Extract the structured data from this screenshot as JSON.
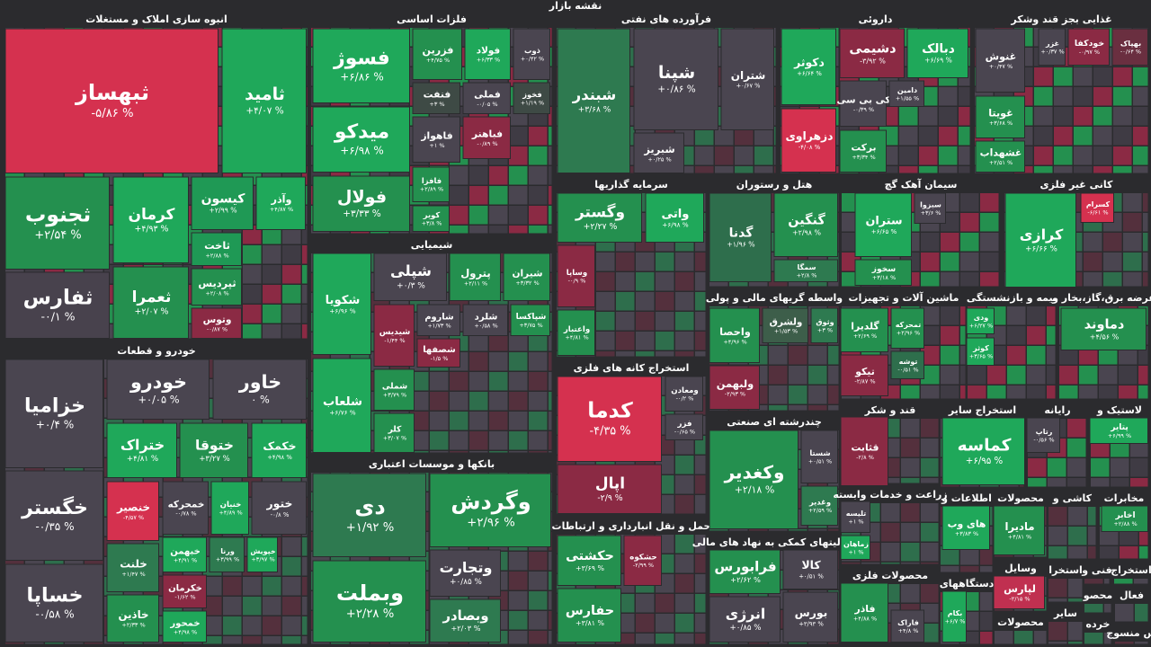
{
  "title": "نقشه بازار",
  "sectors": [
    {
      "name": "انبوه سازی املاک و مستغلات",
      "tiles": [
        {
          "symbol": "ثبهساز",
          "change": "-۵/۸۶ %",
          "color": "#d5314f"
        },
        {
          "symbol": "ثامید",
          "change": "+۴/۰۷ %",
          "color": "#1fa85a"
        },
        {
          "symbol": "ثجنوب",
          "change": "+۲/۵۴ %",
          "color": "#24904f"
        },
        {
          "symbol": "کرمان",
          "change": "+۴/۹۳ %",
          "color": "#1fa85a"
        },
        {
          "symbol": "کیسون",
          "change": "+۲/۹۹ %",
          "color": "#1f9955"
        },
        {
          "symbol": "وآذر",
          "change": "+۴/۸۷ %",
          "color": "#1fa85a"
        },
        {
          "symbol": "ثاخت",
          "change": "+۲/۸۸ %",
          "color": "#1f9955"
        },
        {
          "symbol": "ثفارس",
          "change": "-۰/۱ %",
          "color": "#48424d"
        },
        {
          "symbol": "ثعمرا",
          "change": "+۲/۰۷ %",
          "color": "#24904f"
        },
        {
          "symbol": "ثپردیس",
          "change": "+۲/۰۸ %",
          "color": "#24904f"
        },
        {
          "symbol": "وتوس",
          "change": "-۰/۸۷ %",
          "color": "#8b2a44"
        }
      ]
    },
    {
      "name": "خودرو و قطعات",
      "tiles": [
        {
          "symbol": "خزامیا",
          "change": "+۰/۴ %",
          "color": "#4a4550"
        },
        {
          "symbol": "خاور",
          "change": "۰ %",
          "color": "#4a4550"
        },
        {
          "symbol": "خودرو",
          "change": "+۰/۰۵ %",
          "color": "#4a4550"
        },
        {
          "symbol": "خگستر",
          "change": "-۰/۳۵ %",
          "color": "#4a4550"
        },
        {
          "symbol": "خساپا",
          "change": "-۰/۵۸ %",
          "color": "#4a4550"
        },
        {
          "symbol": "ختراک",
          "change": "+۴/۸۱ %",
          "color": "#1fa85a"
        },
        {
          "symbol": "ختوقا",
          "change": "+۳/۲۷ %",
          "color": "#24904f"
        },
        {
          "symbol": "خکمک",
          "change": "+۴/۹۸ %",
          "color": "#1fa85a"
        },
        {
          "symbol": "خنصیر",
          "change": "-۴/۵۷ %",
          "color": "#d5314f"
        },
        {
          "symbol": "خمحرکه",
          "change": "-۰/۷۸ %",
          "color": "#4a4550"
        },
        {
          "symbol": "خنیان",
          "change": "+۴/۸۹ %",
          "color": "#1fa85a"
        },
        {
          "symbol": "ختور",
          "change": "-۰/۸ %",
          "color": "#4a4550"
        },
        {
          "symbol": "خلنت",
          "change": "+۱/۴۷ %",
          "color": "#2e7a50"
        },
        {
          "symbol": "خاذین",
          "change": "+۲/۳۳ %",
          "color": "#24904f"
        },
        {
          "symbol": "خبهمن",
          "change": "+۴/۹۱ %",
          "color": "#1fa85a"
        },
        {
          "symbol": "خکرمان",
          "change": "-۱/۶۲ %",
          "color": "#8b2a44"
        },
        {
          "symbol": "خمحور",
          "change": "+۴/۹۸ %",
          "color": "#1fa85a"
        },
        {
          "symbol": "ورنا",
          "change": "+۳/۹۹ %",
          "color": "#2e7a50"
        },
        {
          "symbol": "خپویش",
          "change": "+۳/۹۷ %",
          "color": "#1fa85a"
        }
      ]
    },
    {
      "name": "فلزات اساسی",
      "tiles": [
        {
          "symbol": "فسوژ",
          "change": "+۶/۸۶ %",
          "color": "#1fa85a"
        },
        {
          "symbol": "فزرین",
          "change": "+۴/۷۵ %",
          "color": "#24904f"
        },
        {
          "symbol": "فولاد",
          "change": "+۶/۳۳ %",
          "color": "#1fa85a"
        },
        {
          "symbol": "ذوب",
          "change": "+۰/۴۲ %",
          "color": "#4a4550"
        },
        {
          "symbol": "میدکو",
          "change": "+۶/۹۸ %",
          "color": "#1fa85a"
        },
        {
          "symbol": "فنفت",
          "change": "+۳ %",
          "color": "#3e4a45"
        },
        {
          "symbol": "فملی",
          "change": "-۰/۰۵ %",
          "color": "#4a4550"
        },
        {
          "symbol": "فخوز",
          "change": "+۱/۱۹ %",
          "color": "#3e4a45"
        },
        {
          "symbol": "فاهواز",
          "change": "+۱ %",
          "color": "#4a4550"
        },
        {
          "symbol": "فباهنر",
          "change": "-۰/۸۹ %",
          "color": "#8b2a44"
        },
        {
          "symbol": "فافزا",
          "change": "+۲/۸۹ %",
          "color": "#24904f"
        },
        {
          "symbol": "فولال",
          "change": "+۳/۳۳ %",
          "color": "#24904f"
        },
        {
          "symbol": "کویر",
          "change": "+۳/۸ %",
          "color": "#24904f"
        }
      ]
    },
    {
      "name": "شیمیایی",
      "tiles": [
        {
          "symbol": "شکویا",
          "change": "+۶/۹۶ %",
          "color": "#1fa85a"
        },
        {
          "symbol": "شپلی",
          "change": "+۰/۳ %",
          "color": "#4a4550"
        },
        {
          "symbol": "پترول",
          "change": "+۲/۱۱ %",
          "color": "#24904f"
        },
        {
          "symbol": "شیران",
          "change": "+۳/۳۲ %",
          "color": "#24904f"
        },
        {
          "symbol": "شیدیس",
          "change": "-۱/۴۴ %",
          "color": "#8b2a44"
        },
        {
          "symbol": "شاروم",
          "change": "+۱/۷۳ %",
          "color": "#4a4550"
        },
        {
          "symbol": "شلرد",
          "change": "+۰/۵۸ %",
          "color": "#4a4550"
        },
        {
          "symbol": "شپاکسا",
          "change": "+۳/۷۵ %",
          "color": "#24904f"
        },
        {
          "symbol": "شصفها",
          "change": "-۱/۵ %",
          "color": "#8b2a44"
        },
        {
          "symbol": "شلعاب",
          "change": "+۶/۷۶ %",
          "color": "#1fa85a"
        },
        {
          "symbol": "شملی",
          "change": "+۳/۷۹ %",
          "color": "#24904f"
        },
        {
          "symbol": "کلر",
          "change": "+۳/۰۷ %",
          "color": "#24904f"
        }
      ]
    },
    {
      "name": "بانکها و موسسات اعتباری",
      "tiles": [
        {
          "symbol": "دی",
          "change": "+۱/۹۲ %",
          "color": "#2e7a50"
        },
        {
          "symbol": "وبملت",
          "change": "+۲/۲۸ %",
          "color": "#24904f"
        },
        {
          "symbol": "وگردش",
          "change": "+۲/۹۶ %",
          "color": "#24904f"
        },
        {
          "symbol": "وتجارت",
          "change": "+۰/۸۵ %",
          "color": "#4a4550"
        },
        {
          "symbol": "وبصادر",
          "change": "+۲/۰۳ %",
          "color": "#2e7a50"
        }
      ]
    },
    {
      "name": "فرآورده های نفتی",
      "tiles": [
        {
          "symbol": "شبندر",
          "change": "+۳/۶۸ %",
          "color": "#2e7a50"
        },
        {
          "symbol": "شپنا",
          "change": "+۰/۸۶ %",
          "color": "#4a4550"
        },
        {
          "symbol": "شتران",
          "change": "+۰/۶۷ %",
          "color": "#4a4550"
        },
        {
          "symbol": "شبریز",
          "change": "+۰/۲۵ %",
          "color": "#4a4550"
        }
      ]
    },
    {
      "name": "سرمایه گذاریها",
      "tiles": [
        {
          "symbol": "وگستر",
          "change": "+۲/۲۷ %",
          "color": "#24904f"
        },
        {
          "symbol": "واتی",
          "change": "+۶/۹۸ %",
          "color": "#1fa85a"
        },
        {
          "symbol": "وساپا",
          "change": "-۰/۹ %",
          "color": "#8b2a44"
        },
        {
          "symbol": "واعتبار",
          "change": "+۴/۸۱ %",
          "color": "#24904f"
        }
      ]
    },
    {
      "name": "استخراج کانه های فلزی",
      "tiles": [
        {
          "symbol": "کدما",
          "change": "-۴/۳۵ %",
          "color": "#d5314f"
        },
        {
          "symbol": "ومعادن",
          "change": "-۰/۲ %",
          "color": "#4a4550"
        },
        {
          "symbol": "فزر",
          "change": "-۰/۶۵ %",
          "color": "#4a4550"
        },
        {
          "symbol": "اپال",
          "change": "-۲/۹ %",
          "color": "#8b2a44"
        }
      ]
    },
    {
      "name": "حمل و نقل انبارداری و ارتباطات",
      "tiles": [
        {
          "symbol": "حکشتی",
          "change": "+۳/۶۹ %",
          "color": "#24904f"
        },
        {
          "symbol": "حشکوه",
          "change": "-۲/۹۹ %",
          "color": "#8b2a44"
        },
        {
          "symbol": "حفارس",
          "change": "+۳/۸۱ %",
          "color": "#24904f"
        }
      ]
    },
    {
      "name": "هتل و رستوران",
      "tiles": [
        {
          "symbol": "گدنا",
          "change": "+۱/۹۶ %",
          "color": "#2e6e4c"
        },
        {
          "symbol": "گنگین",
          "change": "+۲/۹۸ %",
          "color": "#24904f"
        },
        {
          "symbol": "سمگا",
          "change": "+۲/۸ %",
          "color": "#2e7a50"
        }
      ]
    },
    {
      "name": "واسطه گریهای مالی و پولی",
      "tiles": [
        {
          "symbol": "واحصا",
          "change": "+۴/۹۶ %",
          "color": "#24904f"
        },
        {
          "symbol": "ولشرق",
          "change": "+۱/۵۳ %",
          "color": "#3d5e4a"
        },
        {
          "symbol": "وثوق",
          "change": "+۳ %",
          "color": "#2e7a50"
        },
        {
          "symbol": "ولبهمن",
          "change": "-۲/۹۳ %",
          "color": "#8b2a44"
        }
      ]
    },
    {
      "name": "چندرشته ای صنعتی",
      "tiles": [
        {
          "symbol": "وکغدیر",
          "change": "+۲/۱۸ %",
          "color": "#24904f"
        },
        {
          "symbol": "شستا",
          "change": "+۰/۵۱ %",
          "color": "#4a4550"
        },
        {
          "symbol": "وغدیر",
          "change": "+۲/۵۹ %",
          "color": "#2e7a50"
        }
      ]
    },
    {
      "name": "فعالیتهای کمکی به نهاد های مالی",
      "tiles": [
        {
          "symbol": "فرابورس",
          "change": "+۲/۶۲ %",
          "color": "#24904f"
        },
        {
          "symbol": "کالا",
          "change": "+۰/۵۱ %",
          "color": "#4a4550"
        },
        {
          "symbol": "انرژی",
          "change": "+۰/۸۵ %",
          "color": "#4a4550"
        },
        {
          "symbol": "بورس",
          "change": "+۳/۹۳ %",
          "color": "#4a4550"
        }
      ]
    },
    {
      "name": "داروئی",
      "tiles": [
        {
          "symbol": "دکوثر",
          "change": "+۶/۶۴ %",
          "color": "#1fa85a"
        },
        {
          "symbol": "دزهراوی",
          "change": "-۴/۰۸ %",
          "color": "#d5314f"
        },
        {
          "symbol": "دشیمی",
          "change": "-۳/۹۲ %",
          "color": "#8b2a44"
        },
        {
          "symbol": "دبالک",
          "change": "+۶/۶۹ %",
          "color": "#1fa85a"
        },
        {
          "symbol": "کی بی سی",
          "change": "-۰/۳۹ %",
          "color": "#4a4550"
        },
        {
          "symbol": "دامین",
          "change": "+۱/۵۵ %",
          "color": "#4a4550"
        },
        {
          "symbol": "برکت",
          "change": "+۳/۳۴ %",
          "color": "#24904f"
        }
      ]
    },
    {
      "name": "غذایی بجز قند وشکر",
      "tiles": [
        {
          "symbol": "بهپاک",
          "change": "-۰/۶۴ %",
          "color": "#6a2f40"
        },
        {
          "symbol": "خودکفا",
          "change": "-۰/۹۷ %",
          "color": "#8b2a44"
        },
        {
          "symbol": "غزر",
          "change": "+۰/۳۷ %",
          "color": "#4a4550"
        },
        {
          "symbol": "غنوش",
          "change": "+۰/۴۷ %",
          "color": "#4a4550"
        },
        {
          "symbol": "غویتا",
          "change": "+۳/۶۸ %",
          "color": "#24904f"
        },
        {
          "symbol": "غشهداب",
          "change": "+۲/۵۱ %",
          "color": "#24904f"
        }
      ]
    },
    {
      "name": "سیمان آهک گچ",
      "tiles": [
        {
          "symbol": "ستران",
          "change": "+۶/۶۵ %",
          "color": "#1fa85a"
        },
        {
          "symbol": "سبزوا",
          "change": "+۳/۶ %",
          "color": "#4a4550"
        },
        {
          "symbol": "سخوز",
          "change": "+۳/۱۸ %",
          "color": "#24904f"
        }
      ]
    },
    {
      "name": "کانی غیر فلزی",
      "tiles": [
        {
          "symbol": "کرازی",
          "change": "+۶/۶۶ %",
          "color": "#1fa85a"
        },
        {
          "symbol": "کسرام",
          "change": "-۶/۶۱ %",
          "color": "#d5314f"
        }
      ]
    },
    {
      "name": "ماشین آلات و تجهیزات",
      "tiles": [
        {
          "symbol": "گلدیرا",
          "change": "+۲/۶۹ %",
          "color": "#24904f"
        },
        {
          "symbol": "تمحرکه",
          "change": "+۲/۹۶ %",
          "color": "#24904f"
        },
        {
          "symbol": "توشه",
          "change": "-۰/۵۱ %",
          "color": "#2e6e4c"
        },
        {
          "symbol": "تیکو",
          "change": "-۲/۸۷ %",
          "color": "#8b2a44"
        }
      ]
    },
    {
      "name": "بیمه و بازنشستگی",
      "tiles": [
        {
          "symbol": "ودی",
          "change": "+۶/۲۷ %",
          "color": "#1fa85a"
        },
        {
          "symbol": "کوثر",
          "change": "+۳/۶۵ %",
          "color": "#1fa85a"
        }
      ]
    },
    {
      "name": "عرضه برق،گاز،بخار و",
      "tiles": [
        {
          "symbol": "دماوند",
          "change": "+۴/۵۶ %",
          "color": "#24904f"
        }
      ]
    },
    {
      "name": "قند و شکر",
      "tiles": [
        {
          "symbol": "قثابت",
          "change": "-۲/۸ %",
          "color": "#8b2a44"
        }
      ]
    },
    {
      "name": "استخراج سایر",
      "tiles": [
        {
          "symbol": "کماسه",
          "change": "+۶/۹۵ %",
          "color": "#1fa85a"
        }
      ]
    },
    {
      "name": "رایانه",
      "tiles": [
        {
          "symbol": "رتاپ",
          "change": "-۰/۵۶ %",
          "color": "#4a4550"
        }
      ]
    },
    {
      "name": "لاستیک و",
      "tiles": [
        {
          "symbol": "پتایر",
          "change": "+۶/۹۹ %",
          "color": "#1fa85a"
        }
      ]
    },
    {
      "name": "زراعت و خدمات وابسته",
      "tiles": [
        {
          "symbol": "تلیسه",
          "change": "+۱ %",
          "color": "#4a4550"
        },
        {
          "symbol": "زماهان",
          "change": "+۱ %",
          "color": "#1fa85a"
        }
      ]
    },
    {
      "name": "محصولات فلزی",
      "tiles": [
        {
          "symbol": "فاذر",
          "change": "+۴/۸۸ %",
          "color": "#24904f"
        },
        {
          "symbol": "فاراک",
          "change": "+۴/۸ %",
          "color": "#4a4550"
        }
      ]
    },
    {
      "name": "اطلاعات و",
      "tiles": [
        {
          "symbol": "های وب",
          "change": "+۳/۸۳ %",
          "color": "#1fa85a"
        }
      ]
    },
    {
      "name": "محصولات",
      "tiles": [
        {
          "symbol": "مادیرا",
          "change": "+۴/۸۱ %",
          "color": "#24904f"
        }
      ]
    },
    {
      "name": "کاشی و",
      "tiles": []
    },
    {
      "name": "مخابرات",
      "tiles": [
        {
          "symbol": "اخابر",
          "change": "+۲/۸۸ %",
          "color": "#24904f"
        }
      ]
    },
    {
      "name": "دستگاههای",
      "tiles": [
        {
          "symbol": "بکام",
          "change": "+۶/۷ %",
          "color": "#1fa85a"
        }
      ]
    },
    {
      "name": "وسایل",
      "tiles": [
        {
          "symbol": "لپارس",
          "change": "-۲/۱۵ %",
          "color": "#c03050"
        }
      ]
    },
    {
      "name": "محصولات",
      "tiles": []
    },
    {
      "name": "استخرا",
      "tiles": []
    },
    {
      "name": "فنی و",
      "tiles": []
    },
    {
      "name": "استخراج",
      "tiles": []
    },
    {
      "name": "سایر",
      "tiles": []
    },
    {
      "name": "محصو",
      "tiles": []
    },
    {
      "name": "فعال",
      "tiles": []
    },
    {
      "name": "خرده",
      "tiles": []
    },
    {
      "name": "س منسوج",
      "tiles": []
    }
  ]
}
